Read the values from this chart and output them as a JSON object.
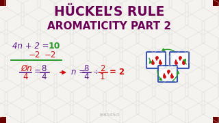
{
  "title_line1": "HÜCKEL’S RULE",
  "title_line2": "AROMATICITY PART 2",
  "title_color": "#6b0057",
  "bg_color": "#f5f3f0",
  "hex_color": "#d8d5ce",
  "watermark": "leah4Sci",
  "purple": "#5a1a8a",
  "green": "#2a9a2a",
  "red": "#cc1111",
  "dark_red_corner": "#6b0000",
  "blue_box": "#2244aa"
}
